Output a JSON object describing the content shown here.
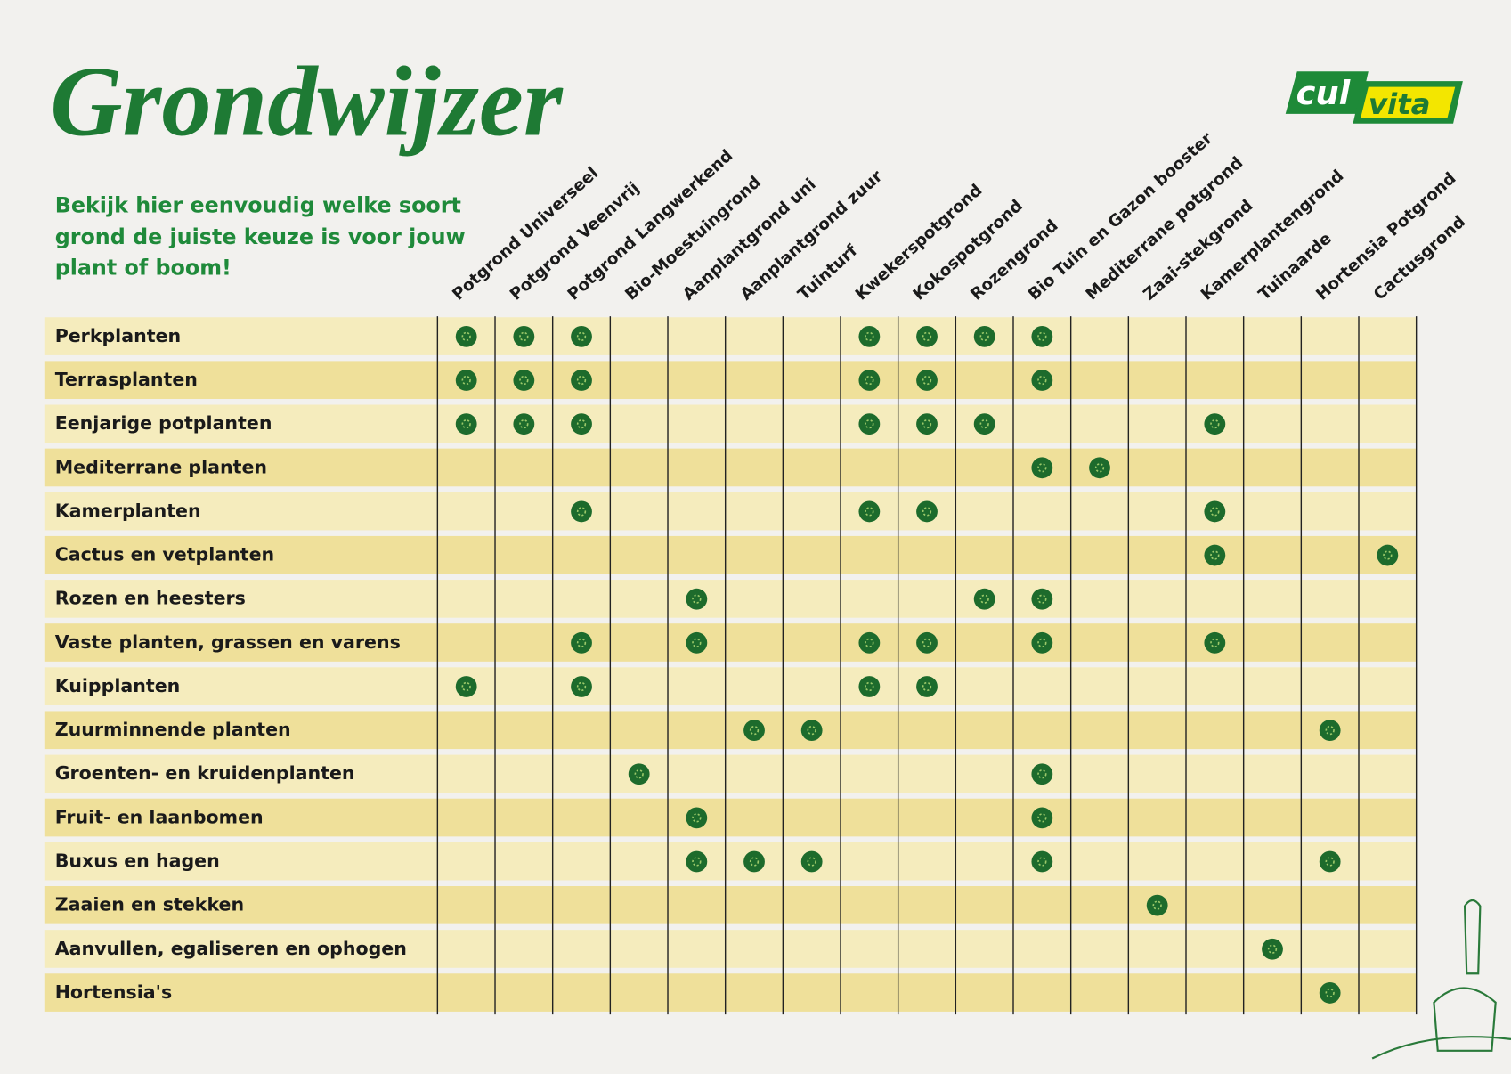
{
  "header": {
    "title": "Grondwijzer",
    "subtitle": [
      "Bekijk hier eenvoudig welke soort",
      "grond de juiste keuze is voor jouw",
      "plant of boom!"
    ],
    "logo": [
      "cul",
      "vita"
    ]
  },
  "table": {
    "columns": [
      "Potgrond Universeel",
      "Potgrond Veenvrij",
      "Potgrond Langwerkend",
      "Bio-Moestuingrond",
      "Aanplantgrond uni",
      "Aanplantgrond zuur",
      "Tuinturf",
      "Kwekerspotgrond",
      "Kokospotgrond",
      "Rozengrond",
      "Bio Tuin en Gazon booster",
      "Mediterrane potgrond",
      "Zaai-stekgrond",
      "Kamerplantengrond",
      "Tuinaarde",
      "Hortensia Potgrond",
      "Cactusgrond"
    ],
    "rows": [
      {
        "label": "Perkplanten",
        "checks": [
          0,
          1,
          2,
          7,
          8,
          9,
          10
        ]
      },
      {
        "label": "Terrasplanten",
        "checks": [
          0,
          1,
          2,
          7,
          8,
          10
        ]
      },
      {
        "label": "Eenjarige potplanten",
        "checks": [
          0,
          1,
          2,
          7,
          8,
          9,
          13
        ]
      },
      {
        "label": "Mediterrane planten",
        "checks": [
          10,
          11
        ]
      },
      {
        "label": "Kamerplanten",
        "checks": [
          2,
          7,
          8,
          13
        ]
      },
      {
        "label": "Cactus en vetplanten",
        "checks": [
          13,
          16
        ]
      },
      {
        "label": "Rozen en heesters",
        "checks": [
          4,
          9,
          10
        ]
      },
      {
        "label": "Vaste planten, grassen en varens",
        "checks": [
          2,
          4,
          7,
          8,
          10,
          13
        ]
      },
      {
        "label": "Kuipplanten",
        "checks": [
          0,
          2,
          7,
          8
        ]
      },
      {
        "label": "Zuurminnende planten",
        "checks": [
          5,
          6,
          15
        ]
      },
      {
        "label": "Groenten- en kruidenplanten",
        "checks": [
          3,
          10
        ]
      },
      {
        "label": "Fruit- en laanbomen",
        "checks": [
          4,
          10
        ]
      },
      {
        "label": "Buxus en hagen",
        "checks": [
          4,
          5,
          6,
          10,
          15
        ]
      },
      {
        "label": "Zaaien en stekken",
        "checks": [
          12
        ]
      },
      {
        "label": "Aanvullen, egaliseren en ophogen",
        "checks": [
          14
        ]
      },
      {
        "label": "Hortensia's",
        "checks": [
          15
        ]
      }
    ]
  }
}
